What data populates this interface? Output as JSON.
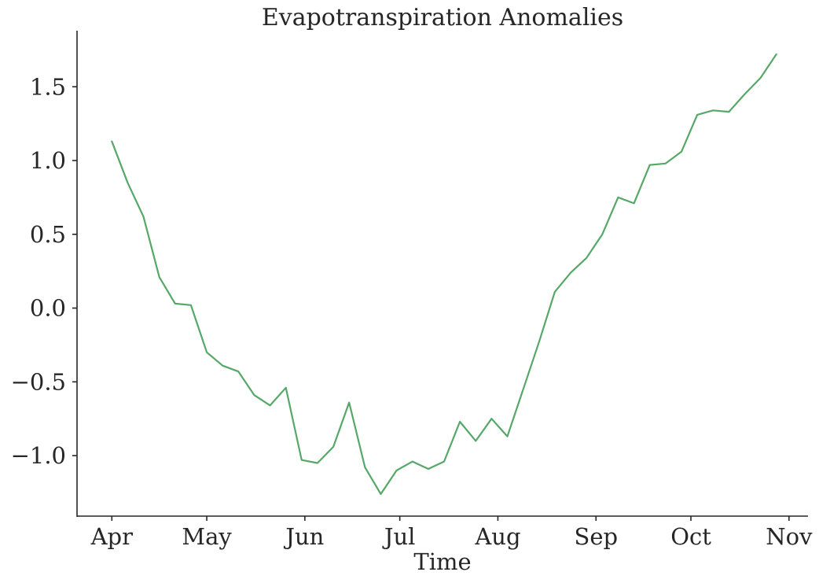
{
  "chart_data": {
    "type": "line",
    "title": "Evapotranspiration Anomalies",
    "xlabel": "Time",
    "ylabel": "",
    "x_ticks": [
      "Apr",
      "May",
      "Jun",
      "Jul",
      "Aug",
      "Sep",
      "Oct",
      "Nov"
    ],
    "y_ticks": [
      "1.5",
      "1.0",
      "0.5",
      "0.0",
      "−0.5",
      "−1.0"
    ],
    "y_tick_values": [
      1.5,
      1.0,
      0.5,
      0.0,
      -0.5,
      -1.0
    ],
    "ylim": [
      -1.41,
      1.88
    ],
    "xlim": [
      "2023-03-21",
      "2023-11-07"
    ],
    "grid": false,
    "series": [
      {
        "color": "#55a868",
        "x": [
          "2023-04-01",
          "2023-04-06",
          "2023-04-11",
          "2023-04-16",
          "2023-04-21",
          "2023-04-26",
          "2023-05-01",
          "2023-05-06",
          "2023-05-11",
          "2023-05-16",
          "2023-05-21",
          "2023-05-26",
          "2023-05-31",
          "2023-06-05",
          "2023-06-10",
          "2023-06-15",
          "2023-06-20",
          "2023-06-25",
          "2023-06-30",
          "2023-07-05",
          "2023-07-10",
          "2023-07-15",
          "2023-07-20",
          "2023-07-25",
          "2023-07-30",
          "2023-08-04",
          "2023-08-09",
          "2023-08-14",
          "2023-08-19",
          "2023-08-24",
          "2023-08-29",
          "2023-09-03",
          "2023-09-08",
          "2023-09-13",
          "2023-09-18",
          "2023-09-23",
          "2023-09-28",
          "2023-10-03",
          "2023-10-08",
          "2023-10-13",
          "2023-10-18",
          "2023-10-23",
          "2023-10-28"
        ],
        "values": [
          1.13,
          0.85,
          0.62,
          0.21,
          0.03,
          0.02,
          -0.3,
          -0.39,
          -0.43,
          -0.59,
          -0.66,
          -0.54,
          -1.03,
          -1.05,
          -0.94,
          -0.64,
          -1.08,
          -1.26,
          -1.1,
          -1.04,
          -1.09,
          -1.04,
          -0.77,
          -0.9,
          -0.75,
          -0.87,
          -0.55,
          -0.23,
          0.11,
          0.24,
          0.34,
          0.5,
          0.75,
          0.71,
          0.97,
          0.98,
          1.06,
          1.31,
          1.34,
          1.33,
          1.45,
          1.56,
          1.72
        ]
      }
    ]
  }
}
